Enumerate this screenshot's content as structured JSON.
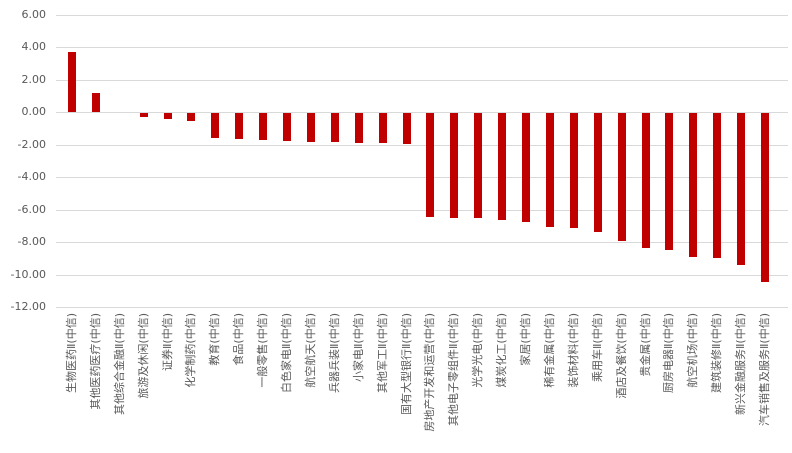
{
  "chart": {
    "colors": {
      "background": "#ffffff",
      "bar": "#c00000",
      "gridline": "#d9d9d9",
      "axis_text": "#595959"
    }
  },
  "chart_data": {
    "type": "bar",
    "title": "",
    "xlabel": "",
    "ylabel": "",
    "legend": false,
    "grid": true,
    "ylim": [
      -12,
      6
    ],
    "ytick_interval": 2,
    "ytick_labels": [
      "6.00",
      "4.00",
      "2.00",
      "0.00",
      "-2.00",
      "-4.00",
      "-6.00",
      "-8.00",
      "-10.00",
      "-12.00"
    ],
    "categories": [
      "生物医药Ⅱ(中信)",
      "其他医药医疗(中信)",
      "其他综合金融Ⅱ(中信)",
      "旅游及休闲(中信)",
      "证券Ⅱ(中信)",
      "化学制药(中信)",
      "教育(中信)",
      "食品(中信)",
      "一般零售(中信)",
      "白色家电Ⅱ(中信)",
      "航空航天(中信)",
      "兵器兵装Ⅱ(中信)",
      "小家电Ⅱ(中信)",
      "其他军工Ⅱ(中信)",
      "国有大型银行Ⅱ(中信)",
      "房地产开发和运营(中信)",
      "其他电子零组件Ⅱ(中信)",
      "光学光电(中信)",
      "煤炭化工(中信)",
      "家居(中信)",
      "稀有金属(中信)",
      "装饰材料(中信)",
      "乘用车Ⅱ(中信)",
      "酒店及餐饮(中信)",
      "贵金属(中信)",
      "厨房电器Ⅱ(中信)",
      "航空机场(中信)",
      "建筑装修Ⅱ(中信)",
      "新兴金融服务Ⅱ(中信)",
      "汽车销售及服务Ⅱ(中信)"
    ],
    "values": [
      3.72,
      1.21,
      0.0,
      -0.25,
      -0.33,
      -0.45,
      -1.51,
      -1.57,
      -1.63,
      -1.69,
      -1.74,
      -1.78,
      -1.82,
      -1.84,
      -1.86,
      -6.39,
      -6.44,
      -6.46,
      -6.57,
      -6.69,
      -6.98,
      -7.04,
      -7.33,
      -7.86,
      -8.31,
      -8.41,
      -8.86,
      -8.94,
      -9.37,
      -10.37
    ]
  }
}
